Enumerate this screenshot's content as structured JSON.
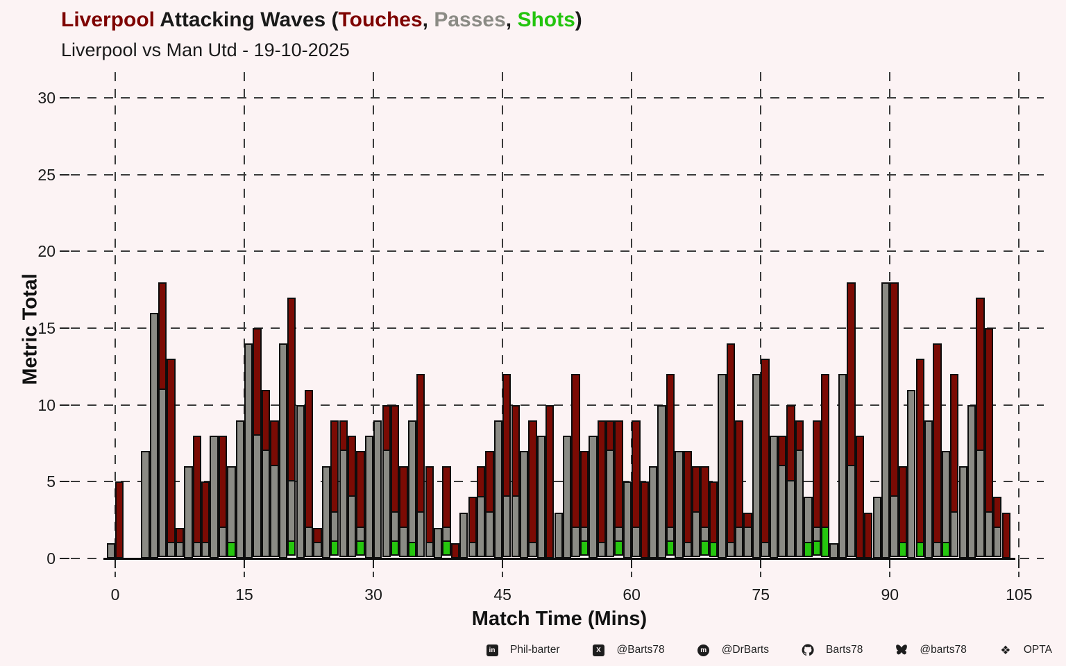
{
  "title": {
    "team": "Liverpool",
    "mid": " Attacking Waves (",
    "touches": "Touches",
    "sep1": ", ",
    "passes": "Passes",
    "sep2": ", ",
    "shots": "Shots",
    "close": ")"
  },
  "subtitle": "Liverpool vs Man Utd - 19-10-2025",
  "axes": {
    "ylabel": "Metric Total",
    "xlabel": "Match Time (Mins)",
    "yticks": [
      0,
      5,
      10,
      15,
      20,
      25,
      30
    ],
    "xticks": [
      0,
      15,
      30,
      45,
      60,
      75,
      90,
      105
    ],
    "ylim": [
      0,
      30
    ],
    "xlim": [
      0,
      105
    ],
    "grid": "dashed"
  },
  "colors": {
    "background": "#FCF3F4",
    "touches": "#7B0B04",
    "passes": "#8B8B85",
    "shots": "#26C60F",
    "bar_outline": "#0D0D0D",
    "grid": "#3A3A3A",
    "title_team": "#7E0301"
  },
  "chart_data": {
    "type": "bar",
    "stacked": true,
    "title": "Liverpool Attacking Waves (Touches, Passes, Shots)",
    "subtitle": "Liverpool vs Man Utd - 19-10-2025",
    "xlabel": "Match Time (Mins)",
    "ylabel": "Metric Total",
    "x_start_minute": 0,
    "x": "per-minute bins 0-104",
    "ylim": [
      0,
      30
    ],
    "stack_order_bottom_to_top": [
      "Shots",
      "Passes",
      "Touches"
    ],
    "series": [
      {
        "name": "Shots",
        "color": "#26C60F",
        "values": [
          0,
          0,
          0,
          0,
          0,
          0,
          0,
          0,
          0,
          0,
          0,
          0,
          0,
          0,
          1,
          0,
          0,
          0,
          0,
          0,
          0,
          1,
          0,
          0,
          0,
          0,
          1,
          0,
          0,
          1,
          0,
          0,
          0,
          1,
          0,
          1,
          0,
          0,
          0,
          1,
          0,
          0,
          0,
          0,
          0,
          0,
          0,
          0,
          0,
          0,
          0,
          0,
          0,
          0,
          0,
          1,
          0,
          0,
          0,
          1,
          0,
          0,
          0,
          0,
          0,
          1,
          0,
          0,
          0,
          1,
          1,
          0,
          0,
          0,
          0,
          0,
          0,
          0,
          0,
          0,
          0,
          1,
          1,
          2,
          0,
          0,
          0,
          0,
          0,
          0,
          0,
          0,
          1,
          0,
          1,
          0,
          0,
          1,
          0,
          0,
          0,
          0,
          0,
          0,
          0
        ]
      },
      {
        "name": "Passes",
        "color": "#8B8B85",
        "values": [
          1,
          0,
          0,
          0,
          7,
          16,
          11,
          1,
          1,
          6,
          1,
          1,
          8,
          2,
          5,
          9,
          14,
          8,
          7,
          6,
          14,
          4,
          10,
          2,
          1,
          6,
          2,
          7,
          4,
          1,
          8,
          9,
          7,
          2,
          2,
          8,
          3,
          1,
          2,
          1,
          0,
          3,
          1,
          4,
          3,
          9,
          4,
          4,
          7,
          1,
          8,
          0,
          3,
          8,
          2,
          1,
          8,
          1,
          7,
          1,
          5,
          2,
          0,
          6,
          10,
          1,
          7,
          1,
          3,
          1,
          0,
          12,
          1,
          2,
          2,
          12,
          1,
          8,
          6,
          5,
          7,
          3,
          1,
          0,
          1,
          12,
          6,
          0,
          0,
          4,
          18,
          4,
          0,
          11,
          0,
          9,
          1,
          6,
          3,
          6,
          10,
          7,
          3,
          2,
          0
        ]
      },
      {
        "name": "Touches",
        "color": "#7B0B04",
        "values": [
          0,
          5,
          0,
          0,
          0,
          0,
          7,
          12,
          1,
          0,
          7,
          4,
          0,
          6,
          0,
          0,
          0,
          7,
          4,
          3,
          0,
          12,
          0,
          9,
          1,
          0,
          6,
          2,
          4,
          5,
          0,
          0,
          3,
          7,
          4,
          0,
          9,
          5,
          0,
          4,
          1,
          0,
          3,
          2,
          4,
          0,
          8,
          6,
          0,
          8,
          0,
          10,
          0,
          0,
          10,
          5,
          0,
          8,
          2,
          7,
          0,
          7,
          5,
          0,
          0,
          10,
          0,
          6,
          3,
          4,
          4,
          0,
          13,
          7,
          1,
          0,
          12,
          0,
          2,
          5,
          2,
          0,
          7,
          10,
          0,
          0,
          12,
          8,
          3,
          0,
          0,
          14,
          5,
          0,
          12,
          0,
          13,
          0,
          9,
          0,
          0,
          10,
          12,
          2,
          3
        ]
      }
    ]
  },
  "footer": {
    "items": [
      {
        "icon": "linkedin-icon",
        "label": "Phil-barter"
      },
      {
        "icon": "x-icon",
        "label": "@Barts78"
      },
      {
        "icon": "mastodon-icon",
        "label": "@DrBarts"
      },
      {
        "icon": "github-icon",
        "label": "Barts78"
      },
      {
        "icon": "bluesky-icon",
        "label": "@barts78"
      },
      {
        "icon": "dropbox-icon",
        "label": "OPTA"
      }
    ]
  }
}
